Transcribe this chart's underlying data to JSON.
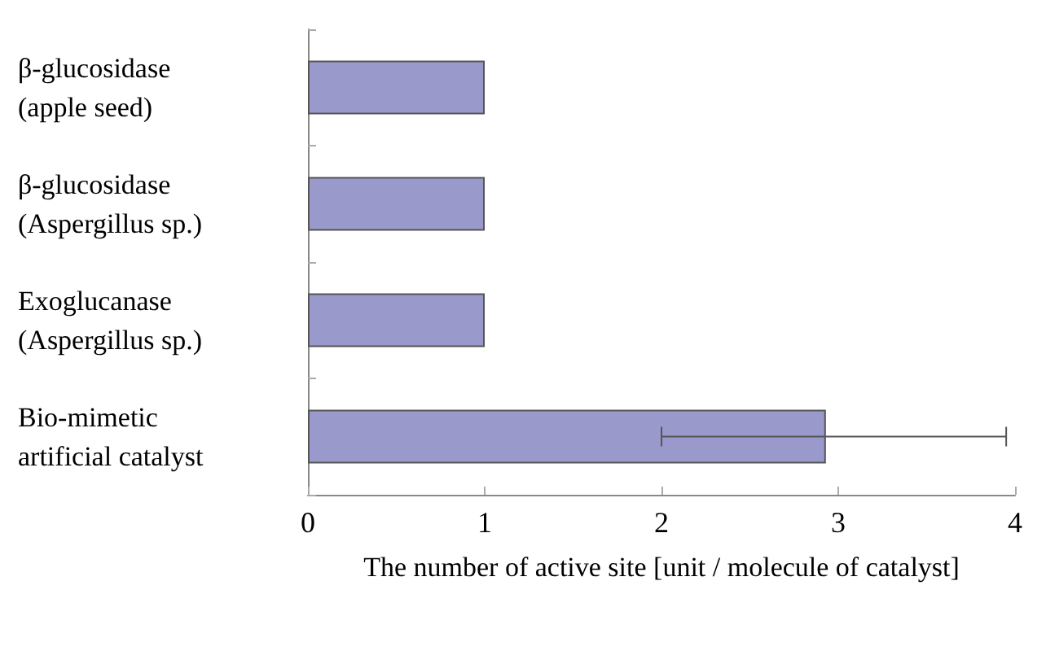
{
  "chart_data": {
    "type": "bar",
    "orientation": "horizontal",
    "xlabel": "The number of active site [unit / molecule of catalyst]",
    "categories": [
      "β-glucosidase\n(apple seed)",
      "β-glucosidase\n(Aspergillus sp.)",
      "Exoglucanase\n(Aspergillus sp.)",
      "Bio-mimetic\nartificial catalyst"
    ],
    "values": [
      1,
      1,
      1,
      2.93
    ],
    "errors": [
      null,
      null,
      null,
      [
        2.0,
        3.95
      ]
    ],
    "color": "#9999cc",
    "xlim": [
      0,
      4
    ],
    "xticks": [
      0,
      1,
      2,
      3,
      4
    ],
    "grid": false
  }
}
